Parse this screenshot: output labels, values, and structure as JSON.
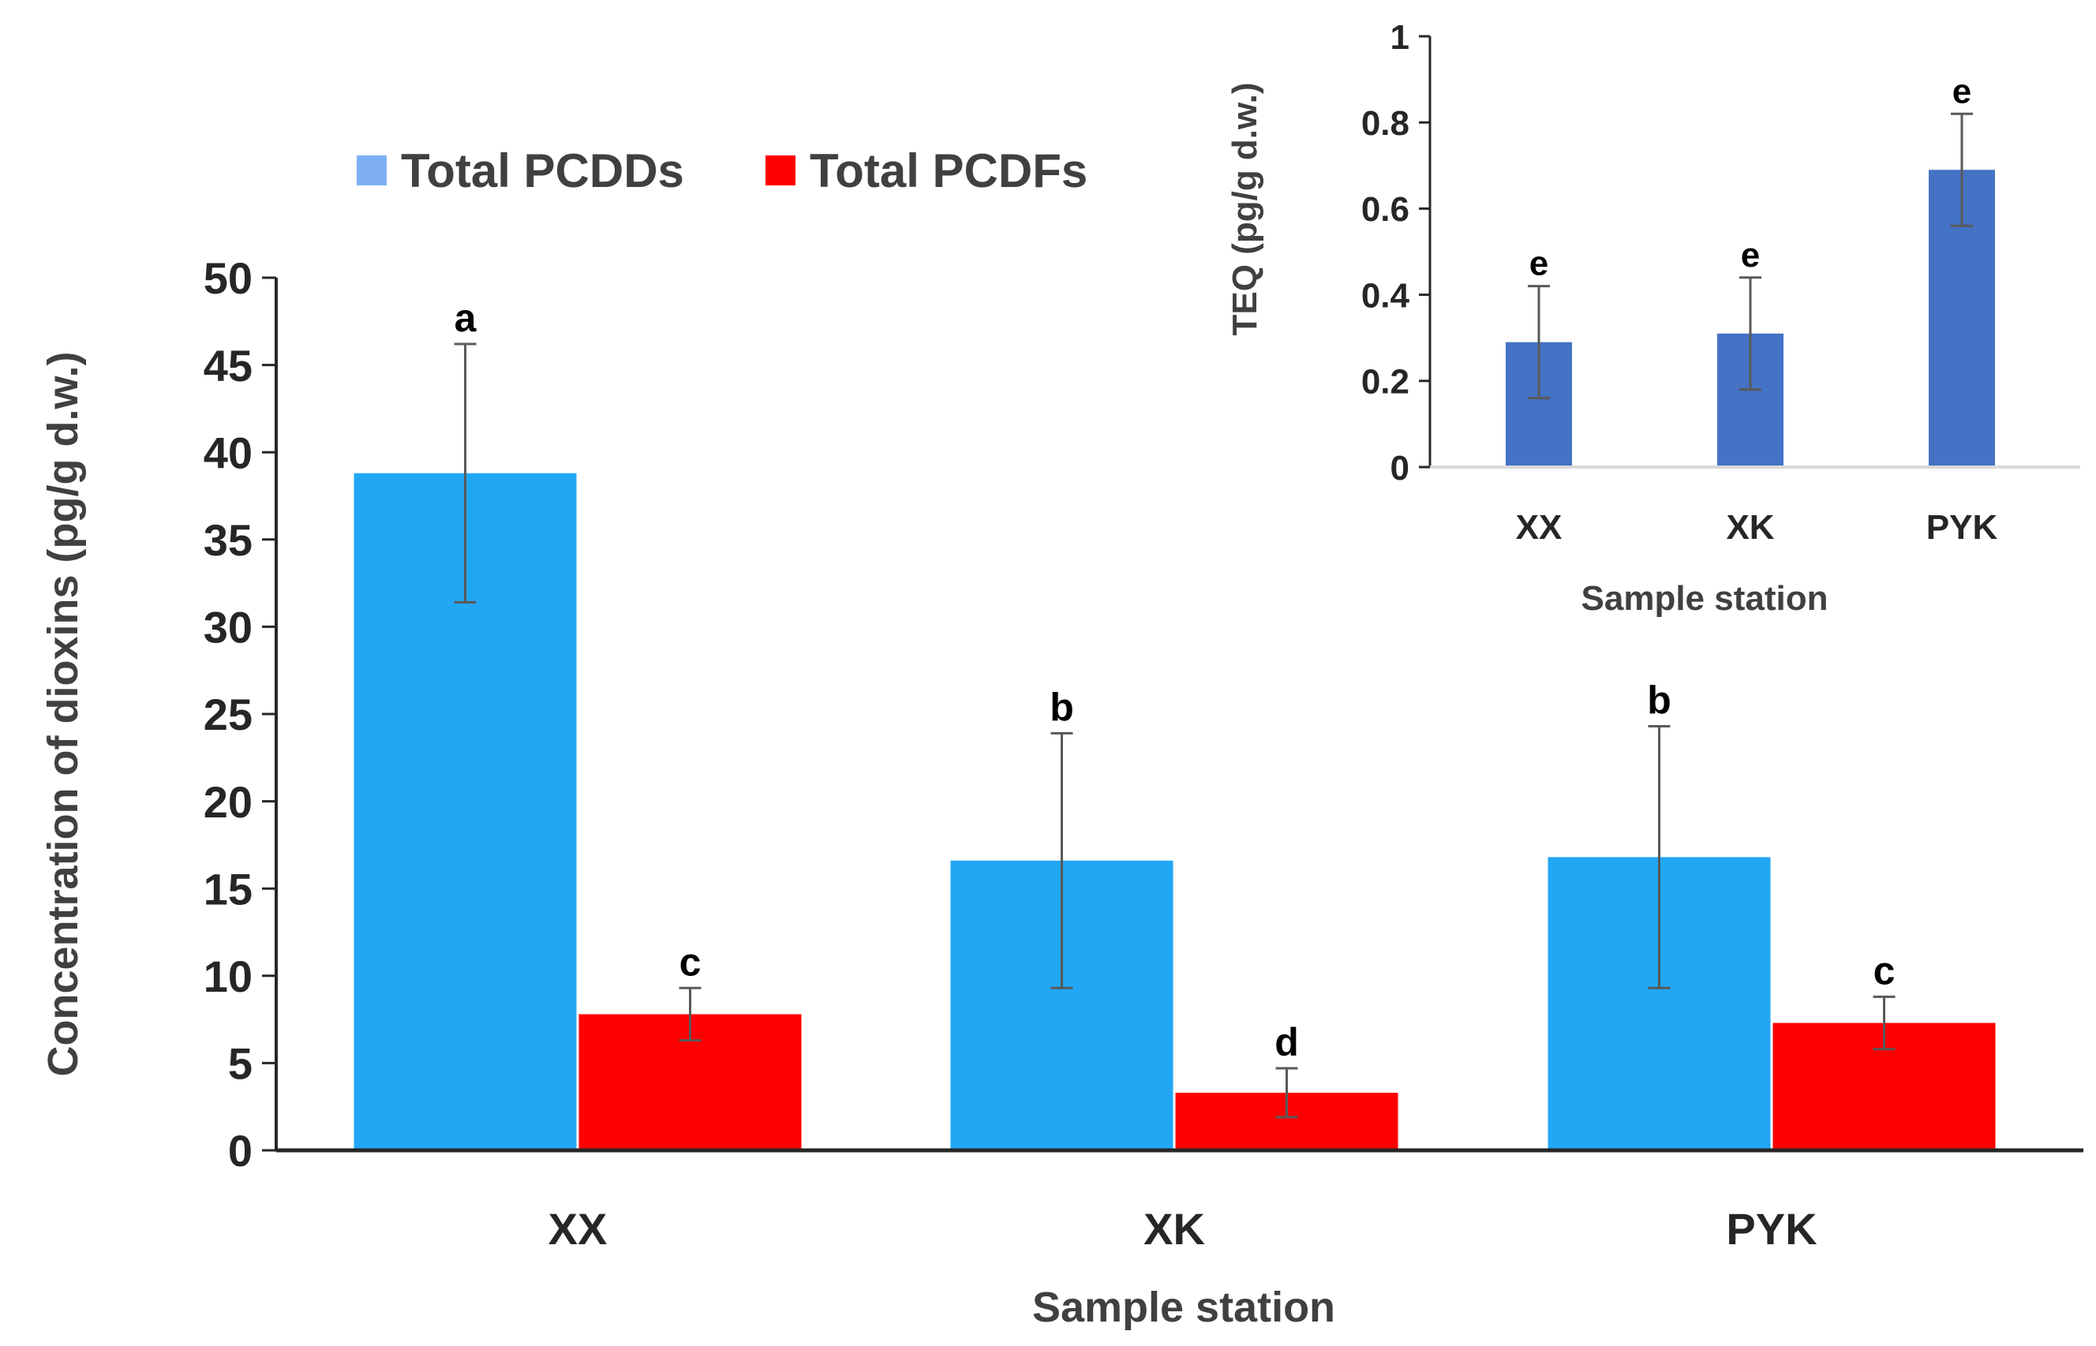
{
  "chart_data": [
    {
      "type": "bar",
      "categories": [
        "XX",
        "XK",
        "PYK"
      ],
      "series": [
        {
          "name": "Total PCDDs",
          "color": "#22A7F5",
          "legend_color": "#7FB0F5",
          "values": [
            38.8,
            16.6,
            16.8
          ],
          "errors": [
            7.4,
            7.3,
            7.5
          ],
          "labels": [
            "a",
            "b",
            "b"
          ]
        },
        {
          "name": "Total PCDFs",
          "color": "#FF0000",
          "legend_color": "#FF0000",
          "values": [
            7.8,
            3.3,
            7.3
          ],
          "errors": [
            1.5,
            1.4,
            1.5
          ],
          "labels": [
            "c",
            "d",
            "c"
          ]
        }
      ],
      "xlabel": "Sample station",
      "ylabel": "Concentration of dioxins (pg/g d.w.)",
      "ylim": [
        0,
        50
      ],
      "yticks": [
        "0",
        "5",
        "10",
        "15",
        "20",
        "25",
        "30",
        "35",
        "40",
        "45",
        "50"
      ],
      "grid": false,
      "legend_position": "top-left"
    },
    {
      "type": "bar",
      "categories": [
        "XX",
        "XK",
        "PYK"
      ],
      "series": [
        {
          "name": "",
          "color": "#4472C4",
          "values": [
            0.29,
            0.31,
            0.69
          ],
          "errors": [
            0.13,
            0.13,
            0.13
          ],
          "labels": [
            "e",
            "e",
            "e"
          ]
        }
      ],
      "xlabel": "Sample station",
      "ylabel": "TEQ (pg/g d.w.)",
      "ylim": [
        0,
        1
      ],
      "yticks": [
        "0",
        "0.2",
        "0.4",
        "0.6",
        "0.8",
        "1"
      ],
      "grid": false,
      "position": "inset-top-right"
    }
  ]
}
